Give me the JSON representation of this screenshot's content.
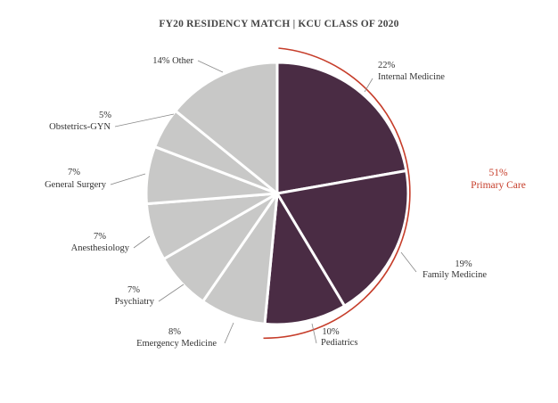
{
  "chart_data": {
    "type": "pie",
    "title": "FY20 RESIDENCY MATCH | KCU CLASS OF 2020",
    "slices": [
      {
        "label": "Internal Medicine",
        "pct_label": "22%",
        "value": 22,
        "group": "primary"
      },
      {
        "label": "Family Medicine",
        "pct_label": "19%",
        "value": 19,
        "group": "primary"
      },
      {
        "label": "Pediatrics",
        "pct_label": "10%",
        "value": 10,
        "group": "primary"
      },
      {
        "label": "Emergency Medicine",
        "pct_label": "8%",
        "value": 8,
        "group": "other"
      },
      {
        "label": "Psychiatry",
        "pct_label": "7%",
        "value": 7,
        "group": "other"
      },
      {
        "label": "Anesthesiology",
        "pct_label": "7%",
        "value": 7,
        "group": "other"
      },
      {
        "label": "General Surgery",
        "pct_label": "7%",
        "value": 7,
        "group": "other"
      },
      {
        "label": "Obstetrics-GYN",
        "pct_label": "5%",
        "value": 5,
        "group": "other"
      },
      {
        "label": "Other",
        "pct_label": "14%",
        "value": 14,
        "group": "other"
      }
    ],
    "highlight": {
      "pct_label": "51%",
      "label": "Primary Care"
    },
    "colors": {
      "primary": "#4a2c44",
      "other": "#c8c8c7",
      "accent": "#c63d2a",
      "leader": "#8a8a8a"
    }
  }
}
